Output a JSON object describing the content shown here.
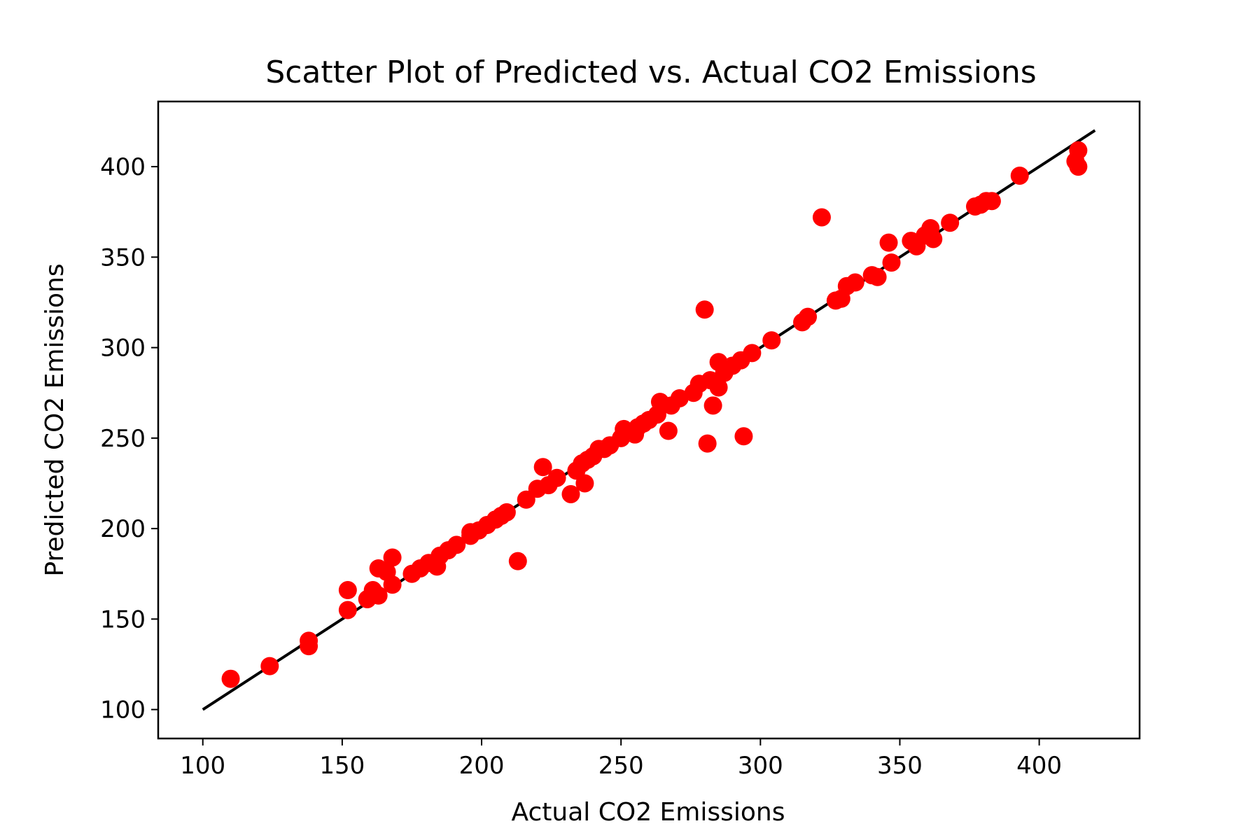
{
  "chart_data": {
    "type": "scatter",
    "title": "Scatter Plot of Predicted vs. Actual CO2 Emissions",
    "xlabel": "Actual CO2 Emissions",
    "ylabel": "Predicted CO2 Emissions",
    "xlim": [
      84,
      436
    ],
    "ylim": [
      84,
      436
    ],
    "xticks": [
      100,
      150,
      200,
      250,
      300,
      350,
      400
    ],
    "yticks": [
      100,
      150,
      200,
      250,
      300,
      350,
      400
    ],
    "grid": false,
    "legend": "none",
    "point_color": "#ff0000",
    "line_color": "#000000",
    "reference_line": {
      "x": [
        100,
        420
      ],
      "y": [
        100,
        420
      ]
    },
    "points": [
      {
        "x": 110,
        "y": 117
      },
      {
        "x": 124,
        "y": 124
      },
      {
        "x": 138,
        "y": 135
      },
      {
        "x": 138,
        "y": 138
      },
      {
        "x": 152,
        "y": 155
      },
      {
        "x": 152,
        "y": 166
      },
      {
        "x": 159,
        "y": 161
      },
      {
        "x": 161,
        "y": 166
      },
      {
        "x": 163,
        "y": 163
      },
      {
        "x": 163,
        "y": 178
      },
      {
        "x": 166,
        "y": 176
      },
      {
        "x": 168,
        "y": 169
      },
      {
        "x": 168,
        "y": 184
      },
      {
        "x": 175,
        "y": 175
      },
      {
        "x": 178,
        "y": 178
      },
      {
        "x": 181,
        "y": 181
      },
      {
        "x": 184,
        "y": 179
      },
      {
        "x": 185,
        "y": 185
      },
      {
        "x": 188,
        "y": 188
      },
      {
        "x": 191,
        "y": 191
      },
      {
        "x": 196,
        "y": 196
      },
      {
        "x": 196,
        "y": 198
      },
      {
        "x": 199,
        "y": 199
      },
      {
        "x": 202,
        "y": 202
      },
      {
        "x": 205,
        "y": 205
      },
      {
        "x": 207,
        "y": 207
      },
      {
        "x": 209,
        "y": 209
      },
      {
        "x": 213,
        "y": 182
      },
      {
        "x": 216,
        "y": 216
      },
      {
        "x": 220,
        "y": 222
      },
      {
        "x": 222,
        "y": 234
      },
      {
        "x": 224,
        "y": 224
      },
      {
        "x": 227,
        "y": 228
      },
      {
        "x": 232,
        "y": 219
      },
      {
        "x": 234,
        "y": 232
      },
      {
        "x": 236,
        "y": 236
      },
      {
        "x": 237,
        "y": 225
      },
      {
        "x": 238,
        "y": 238
      },
      {
        "x": 240,
        "y": 240
      },
      {
        "x": 242,
        "y": 244
      },
      {
        "x": 244,
        "y": 244
      },
      {
        "x": 246,
        "y": 246
      },
      {
        "x": 250,
        "y": 250
      },
      {
        "x": 251,
        "y": 255
      },
      {
        "x": 255,
        "y": 252
      },
      {
        "x": 256,
        "y": 256
      },
      {
        "x": 258,
        "y": 258
      },
      {
        "x": 260,
        "y": 260
      },
      {
        "x": 263,
        "y": 263
      },
      {
        "x": 264,
        "y": 270
      },
      {
        "x": 267,
        "y": 254
      },
      {
        "x": 268,
        "y": 268
      },
      {
        "x": 271,
        "y": 272
      },
      {
        "x": 276,
        "y": 275
      },
      {
        "x": 278,
        "y": 280
      },
      {
        "x": 280,
        "y": 321
      },
      {
        "x": 281,
        "y": 247
      },
      {
        "x": 282,
        "y": 282
      },
      {
        "x": 283,
        "y": 268
      },
      {
        "x": 285,
        "y": 278
      },
      {
        "x": 285,
        "y": 292
      },
      {
        "x": 287,
        "y": 286
      },
      {
        "x": 290,
        "y": 290
      },
      {
        "x": 293,
        "y": 293
      },
      {
        "x": 294,
        "y": 251
      },
      {
        "x": 297,
        "y": 297
      },
      {
        "x": 304,
        "y": 304
      },
      {
        "x": 315,
        "y": 314
      },
      {
        "x": 317,
        "y": 317
      },
      {
        "x": 322,
        "y": 372
      },
      {
        "x": 327,
        "y": 326
      },
      {
        "x": 329,
        "y": 327
      },
      {
        "x": 331,
        "y": 334
      },
      {
        "x": 334,
        "y": 336
      },
      {
        "x": 340,
        "y": 340
      },
      {
        "x": 342,
        "y": 339
      },
      {
        "x": 346,
        "y": 358
      },
      {
        "x": 347,
        "y": 347
      },
      {
        "x": 354,
        "y": 359
      },
      {
        "x": 356,
        "y": 356
      },
      {
        "x": 359,
        "y": 362
      },
      {
        "x": 361,
        "y": 366
      },
      {
        "x": 362,
        "y": 360
      },
      {
        "x": 368,
        "y": 369
      },
      {
        "x": 377,
        "y": 378
      },
      {
        "x": 379,
        "y": 379
      },
      {
        "x": 381,
        "y": 381
      },
      {
        "x": 383,
        "y": 381
      },
      {
        "x": 393,
        "y": 395
      },
      {
        "x": 413,
        "y": 403
      },
      {
        "x": 414,
        "y": 400
      },
      {
        "x": 414,
        "y": 409
      }
    ]
  }
}
